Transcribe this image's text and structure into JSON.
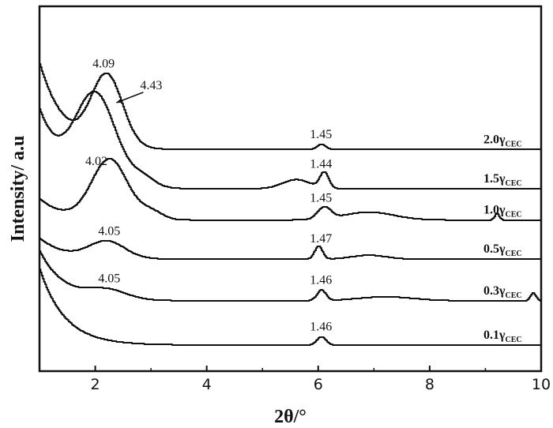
{
  "chart_data": {
    "type": "line",
    "xlabel": "2θ/°",
    "ylabel": "Intensity/ a.u",
    "xlim": [
      1,
      10
    ],
    "x_ticks": [
      "2",
      "4",
      "6",
      "8",
      "10"
    ],
    "y_ticks_shown": false,
    "grid": false,
    "series": [
      {
        "name": "0.1γCEC",
        "label_main": "0.1γ",
        "label_sub": "CEC",
        "baseline": 1.0,
        "start": 3.9,
        "peaks": [
          {
            "x": 6.05,
            "h": 0.32,
            "w": 0.08
          }
        ],
        "labels": [
          {
            "x": 6.05,
            "text": "1.46"
          }
        ]
      },
      {
        "name": "0.3γCEC",
        "label_main": "0.3γ",
        "label_sub": "CEC",
        "baseline": 2.7,
        "start": 4.6,
        "peaks": [
          {
            "x": 2.2,
            "h": 0.35,
            "w": 0.35
          },
          {
            "x": 6.05,
            "h": 0.4,
            "w": 0.08
          },
          {
            "x": 7.2,
            "h": 0.15,
            "w": 0.5
          },
          {
            "x": 9.85,
            "h": 0.3,
            "w": 0.05
          }
        ],
        "labels": [
          {
            "x": 2.25,
            "text": "4.05"
          },
          {
            "x": 6.05,
            "text": "1.46"
          }
        ]
      },
      {
        "name": "0.5γCEC",
        "label_main": "0.5γ",
        "label_sub": "CEC",
        "baseline": 4.3,
        "start": 5.1,
        "peaks": [
          {
            "x": 2.2,
            "h": 0.65,
            "w": 0.32
          },
          {
            "x": 6.0,
            "h": 0.5,
            "w": 0.07
          },
          {
            "x": 6.9,
            "h": 0.15,
            "w": 0.3
          }
        ],
        "labels": [
          {
            "x": 2.25,
            "text": "4.05"
          },
          {
            "x": 6.05,
            "text": "1.47"
          }
        ]
      },
      {
        "name": "1.0γCEC",
        "label_main": "1.0γ",
        "label_sub": "CEC",
        "baseline": 5.8,
        "start": 6.6,
        "peaks": [
          {
            "x": 2.25,
            "h": 2.3,
            "w": 0.32
          },
          {
            "x": 3.0,
            "h": 0.3,
            "w": 0.2
          },
          {
            "x": 6.1,
            "h": 0.45,
            "w": 0.12
          },
          {
            "x": 6.9,
            "h": 0.3,
            "w": 0.45
          },
          {
            "x": 9.2,
            "h": 0.25,
            "w": 0.04
          }
        ],
        "labels": [
          {
            "x": 2.02,
            "text": "4.02"
          },
          {
            "x": 6.05,
            "text": "1.45"
          }
        ]
      },
      {
        "name": "1.5γCEC",
        "label_main": "1.5γ",
        "label_sub": "CEC",
        "baseline": 7.0,
        "start": 10.0,
        "peaks": [
          {
            "x": 2.0,
            "h": 3.4,
            "w": 0.36
          },
          {
            "x": 2.85,
            "h": 0.35,
            "w": 0.22
          },
          {
            "x": 5.6,
            "h": 0.35,
            "w": 0.25
          },
          {
            "x": 6.1,
            "h": 0.6,
            "w": 0.08
          }
        ],
        "labels": [
          {
            "x": 6.05,
            "text": "1.44"
          }
        ]
      },
      {
        "name": "2.0γCEC",
        "label_main": "2.0γ",
        "label_sub": "CEC",
        "baseline": 8.5,
        "start": 11.8,
        "peaks": [
          {
            "x": 2.2,
            "h": 2.7,
            "w": 0.28
          },
          {
            "x": 6.05,
            "h": 0.2,
            "w": 0.08
          }
        ],
        "labels": [
          {
            "x": 6.05,
            "text": "1.45"
          }
        ]
      }
    ],
    "annotations": [
      {
        "text": "4.09",
        "x": 2.15,
        "series": "2.0γCEC"
      },
      {
        "text": "4.43",
        "x": 2.55,
        "series": "2.0γCEC",
        "arrow": true
      }
    ]
  }
}
